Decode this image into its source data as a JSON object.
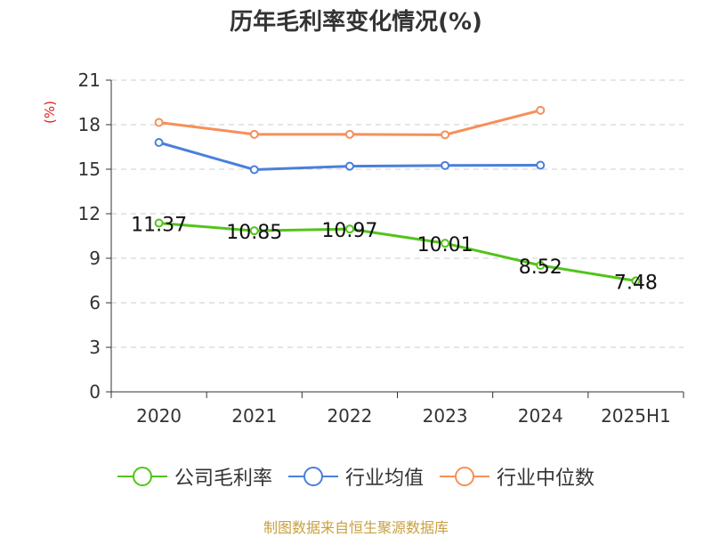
{
  "chart_data": {
    "type": "line",
    "title": "历年毛利率变化情况(%)",
    "ylabel": "(%)",
    "xlabel": "",
    "categories": [
      "2020",
      "2021",
      "2022",
      "2023",
      "2024",
      "2025H1"
    ],
    "ylim": [
      0,
      21
    ],
    "yticks": [
      0,
      3,
      6,
      9,
      12,
      15,
      18,
      21
    ],
    "grid": true,
    "legend_position": "bottom",
    "series": [
      {
        "name": "公司毛利率",
        "color": "#52c41a",
        "values": [
          11.37,
          10.85,
          10.97,
          10.01,
          8.52,
          7.48
        ],
        "labels": [
          "11.37",
          "10.85",
          "10.97",
          "10.01",
          "8.52",
          "7.48"
        ]
      },
      {
        "name": "行业均值",
        "color": "#4a7fdc",
        "values": [
          16.8,
          14.97,
          15.2,
          15.25,
          15.27,
          null
        ]
      },
      {
        "name": "行业中位数",
        "color": "#f5905a",
        "values": [
          18.15,
          17.35,
          17.35,
          17.32,
          18.97,
          null
        ]
      }
    ]
  },
  "footer": {
    "source": "制图数据来自恒生聚源数据库"
  }
}
